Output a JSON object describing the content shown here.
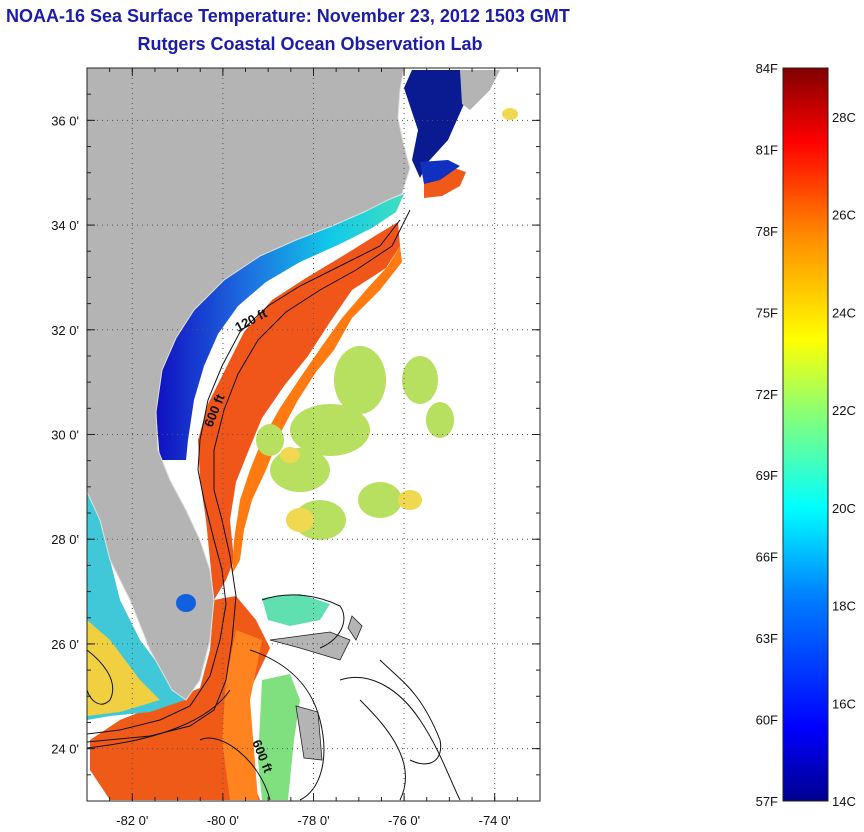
{
  "title": "NOAA-16 Sea Surface Temperature:  November 23, 2012 1503 GMT",
  "subtitle": "Rutgers Coastal Ocean Observation Lab",
  "map": {
    "lat_ticks": [
      {
        "value": 36,
        "label": "36 0'"
      },
      {
        "value": 34,
        "label": "34 0'"
      },
      {
        "value": 32,
        "label": "32 0'"
      },
      {
        "value": 30,
        "label": "30 0'"
      },
      {
        "value": 28,
        "label": "28 0'"
      },
      {
        "value": 26,
        "label": "26 0'"
      },
      {
        "value": 24,
        "label": "24 0'"
      }
    ],
    "lon_ticks": [
      {
        "value": -82,
        "label": "-82 0'"
      },
      {
        "value": -80,
        "label": "-80 0'"
      },
      {
        "value": -78,
        "label": "-78 0'"
      },
      {
        "value": -76,
        "label": "-76 0'"
      },
      {
        "value": -74,
        "label": "-74 0'"
      }
    ],
    "lon_range": [
      -83,
      -73
    ],
    "lat_range": [
      23,
      37
    ],
    "contour_labels": [
      "120 ft",
      "600 ft",
      "600 ft"
    ]
  },
  "colorbar": {
    "fahrenheit_labels": [
      "84F",
      "81F",
      "78F",
      "75F",
      "72F",
      "69F",
      "66F",
      "63F",
      "60F",
      "57F"
    ],
    "celsius_labels": [
      "28C",
      "26C",
      "24C",
      "22C",
      "20C",
      "18C",
      "16C",
      "14C"
    ],
    "colors": [
      "#800000",
      "#ff0000",
      "#ff8c00",
      "#ffff00",
      "#7fff7f",
      "#00ffff",
      "#0080ff",
      "#0000ff",
      "#00008f"
    ]
  }
}
